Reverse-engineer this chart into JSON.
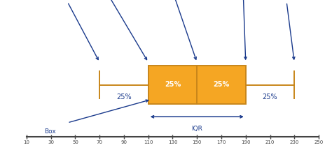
{
  "bg_color": "#ffffff",
  "box_color": "#F5A623",
  "box_edge_color": "#C8861A",
  "label_color": "#1a3a8c",
  "axis_color": "#444444",
  "q0": 70,
  "q1": 110,
  "q2": 150,
  "q3": 190,
  "q4": 230,
  "xmin": 10,
  "xmax": 250,
  "xticks": [
    10,
    30,
    50,
    70,
    90,
    110,
    130,
    150,
    170,
    190,
    210,
    230,
    250
  ]
}
